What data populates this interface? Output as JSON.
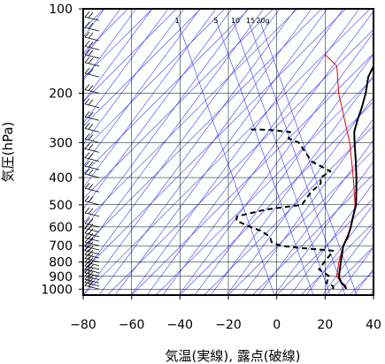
{
  "chart_data": {
    "type": "line",
    "diagram": "skew-T",
    "xlabel": "気温(実線), 露点(破線)",
    "ylabel": "気圧(hPa)",
    "x_axis": {
      "ticks": [
        -80,
        -60,
        -40,
        -20,
        0,
        20,
        40
      ],
      "range": [
        -80,
        40
      ]
    },
    "y_axis": {
      "scale": "log",
      "ticks": [
        100,
        200,
        300,
        400,
        500,
        600,
        700,
        800,
        900,
        1000
      ],
      "range": [
        1050,
        100
      ],
      "major_ticks": [
        100,
        200,
        300,
        400,
        500,
        600,
        700,
        800,
        900,
        1000
      ],
      "tick_labels": [
        "100",
        "200",
        "300",
        "400",
        "500",
        "600",
        "700",
        "800",
        "900",
        "1000"
      ]
    },
    "mixing_ratio_labels": [
      "1",
      "5",
      "10",
      "15",
      "20g"
    ],
    "grid": true,
    "colors": {
      "temperature": "#000000",
      "dewpoint": "#000000",
      "parcel": "#e00000",
      "background_lines": "#3a3aff",
      "grid": "#000000"
    },
    "series": [
      {
        "style": "solid",
        "points": [
          [
            1000,
            26.2
          ],
          [
            975,
            24.6
          ],
          [
            950,
            21.8
          ],
          [
            925,
            19.7
          ],
          [
            900,
            18.0
          ],
          [
            850,
            15.4
          ],
          [
            800,
            12.8
          ],
          [
            750,
            10.0
          ],
          [
            700,
            7.1
          ],
          [
            650,
            5.2
          ],
          [
            600,
            2.4
          ],
          [
            550,
            -1.0
          ],
          [
            500,
            -4.6
          ],
          [
            450,
            -9.8
          ],
          [
            400,
            -15.7
          ],
          [
            350,
            -22.7
          ],
          [
            300,
            -31.0
          ],
          [
            275,
            -35.5
          ],
          [
            250,
            -39.0
          ],
          [
            225,
            -42.5
          ],
          [
            200,
            -46.8
          ],
          [
            175,
            -52.5
          ],
          [
            150,
            -56.5
          ],
          [
            125,
            -61.0
          ],
          [
            110,
            -63.0
          ],
          [
            100,
            -66.5
          ]
        ]
      },
      {
        "style": "dashed",
        "points": [
          [
            1000,
            21.0
          ],
          [
            975,
            19.5
          ],
          [
            950,
            15.5
          ],
          [
            900,
            14.0
          ],
          [
            850,
            6.8
          ],
          [
            800,
            6.0
          ],
          [
            760,
            5.5
          ],
          [
            730,
            5.0
          ],
          [
            710,
            -12.0
          ],
          [
            700,
            -19.0
          ],
          [
            680,
            -24.0
          ],
          [
            650,
            -27.0
          ],
          [
            620,
            -33.0
          ],
          [
            600,
            -39.0
          ],
          [
            570,
            -47.5
          ],
          [
            550,
            -49.0
          ],
          [
            520,
            -40.0
          ],
          [
            500,
            -27.0
          ],
          [
            450,
            -28.5
          ],
          [
            420,
            -28.0
          ],
          [
            400,
            -30.5
          ],
          [
            380,
            -29.0
          ],
          [
            350,
            -41.0
          ],
          [
            300,
            -54.0
          ],
          [
            290,
            -60.0
          ],
          [
            275,
            -62.0
          ],
          [
            270,
            -72.0
          ],
          [
            269,
            -80.0
          ]
        ]
      }
    ],
    "parcel_line": {
      "points": [
        [
          1000,
          26.2
        ],
        [
          900,
          17.0
        ],
        [
          800,
          12.0
        ],
        [
          700,
          7.0
        ],
        [
          600,
          2.5
        ],
        [
          500,
          -5.0
        ],
        [
          400,
          -17.0
        ],
        [
          300,
          -33.0
        ],
        [
          200,
          -58.0
        ],
        [
          160,
          -70.0
        ],
        [
          145,
          -80.0
        ]
      ]
    },
    "wind_barbs_pressures": [
      1000,
      975,
      950,
      925,
      900,
      875,
      850,
      825,
      800,
      775,
      750,
      725,
      700,
      675,
      650,
      625,
      600,
      550,
      500,
      450,
      400,
      375,
      350,
      325,
      300,
      275,
      250,
      225,
      200,
      175,
      160,
      150,
      140,
      130,
      120,
      110,
      100
    ]
  }
}
